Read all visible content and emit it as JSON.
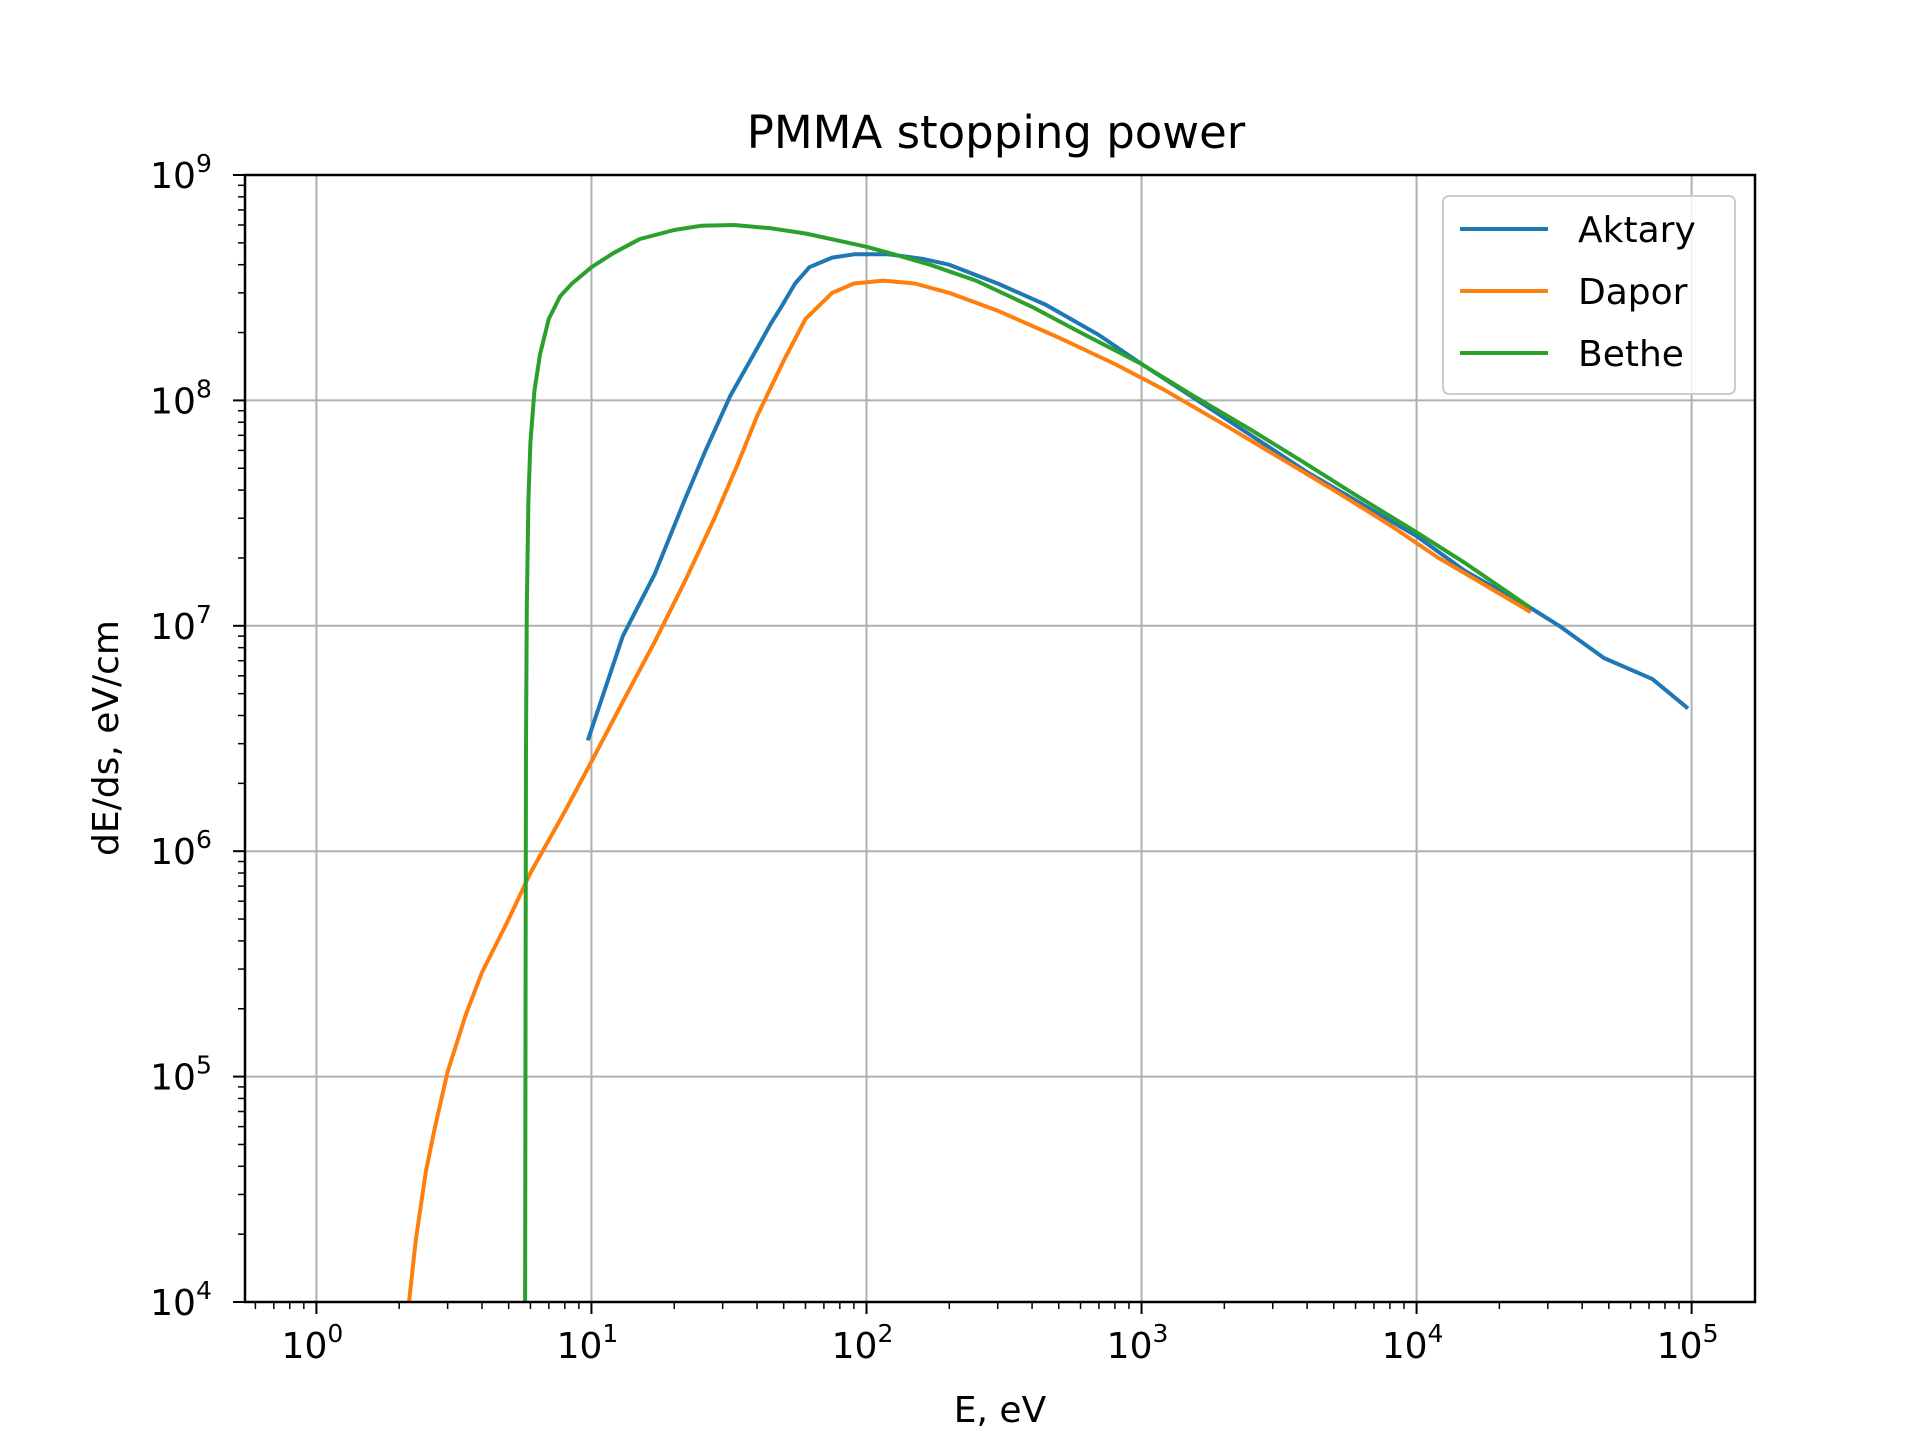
{
  "chart_data": {
    "type": "line",
    "title": "PMMA stopping power",
    "xlabel": "E, eV",
    "ylabel": "dE/ds, eV/cm",
    "xscale": "log",
    "yscale": "log",
    "xlim": [
      0.55,
      170000
    ],
    "ylim": [
      10000,
      1000000000
    ],
    "grid": true,
    "legend_position": "top-right",
    "x_ticks": [
      {
        "base": "10",
        "exp": "0",
        "value": 1
      },
      {
        "base": "10",
        "exp": "1",
        "value": 10
      },
      {
        "base": "10",
        "exp": "2",
        "value": 100
      },
      {
        "base": "10",
        "exp": "3",
        "value": 1000
      },
      {
        "base": "10",
        "exp": "4",
        "value": 10000
      },
      {
        "base": "10",
        "exp": "5",
        "value": 100000
      }
    ],
    "y_ticks": [
      {
        "base": "10",
        "exp": "4",
        "value": 10000
      },
      {
        "base": "10",
        "exp": "5",
        "value": 100000
      },
      {
        "base": "10",
        "exp": "6",
        "value": 1000000
      },
      {
        "base": "10",
        "exp": "7",
        "value": 10000000
      },
      {
        "base": "10",
        "exp": "8",
        "value": 100000000
      },
      {
        "base": "10",
        "exp": "9",
        "value": 1000000000
      }
    ],
    "series": [
      {
        "name": "Aktary",
        "color": "#1f77b4",
        "x": [
          9.7,
          13,
          17,
          22,
          26,
          32,
          40,
          45,
          49,
          55,
          62,
          75,
          90,
          120,
          160,
          200,
          300,
          450,
          700,
          1000,
          1600,
          2500,
          4000,
          6000,
          10000,
          15000,
          26000,
          33000,
          48000,
          72000,
          97000
        ],
        "y": [
          3100000.0,
          9000000.0,
          17000000.0,
          37000000.0,
          60000000.0,
          105000000.0,
          170000000.0,
          220000000.0,
          260000000.0,
          330000000.0,
          390000000.0,
          430000000.0,
          445000000.0,
          445000000.0,
          425000000.0,
          400000000.0,
          330000000.0,
          265000000.0,
          195000000.0,
          145000000.0,
          100000000.0,
          70000000.0,
          48000000.0,
          36000000.0,
          25000000.0,
          17500000.0,
          12000000.0,
          10000000.0,
          7200000.0,
          5800000.0,
          4300000.0
        ]
      },
      {
        "name": "Dapor",
        "color": "#ff7f0e",
        "x": [
          2.17,
          2.3,
          2.5,
          2.7,
          3.0,
          3.5,
          4.0,
          5.0,
          6.0,
          8.0,
          10,
          13,
          17,
          22,
          28,
          34,
          40,
          50,
          60,
          75,
          90,
          115,
          150,
          200,
          300,
          500,
          800,
          1200,
          2000,
          3000,
          5000,
          8000,
          12000,
          18000,
          26000
        ],
        "y": [
          10000.0,
          19000.0,
          38000.0,
          60000.0,
          105000.0,
          190000.0,
          290000.0,
          500000.0,
          800000.0,
          1500000.0,
          2500000.0,
          4600000.0,
          8500000.0,
          16000000.0,
          30000000.0,
          52000000.0,
          85000000.0,
          150000000.0,
          230000000.0,
          300000000.0,
          330000000.0,
          340000000.0,
          330000000.0,
          300000000.0,
          250000000.0,
          190000000.0,
          145000000.0,
          112000000.0,
          78000000.0,
          58000000.0,
          40000000.0,
          28000000.0,
          20000000.0,
          15000000.0,
          11500000.0
        ]
      },
      {
        "name": "Bethe",
        "color": "#2ca02c",
        "x": [
          5.74,
          5.76,
          5.78,
          5.82,
          5.9,
          6.0,
          6.2,
          6.5,
          7.0,
          7.7,
          8.5,
          10,
          12,
          15,
          20,
          25,
          33,
          45,
          60,
          80,
          100,
          130,
          170,
          250,
          400,
          600,
          1000,
          1500,
          2500,
          4000,
          6000,
          10000,
          15000,
          26000
        ],
        "y": [
          10000.0,
          300000.0,
          3000000.0,
          12000000.0,
          36000000.0,
          65000000.0,
          110000000.0,
          160000000.0,
          230000000.0,
          290000000.0,
          330000000.0,
          390000000.0,
          450000000.0,
          520000000.0,
          570000000.0,
          595000000.0,
          600000000.0,
          580000000.0,
          550000000.0,
          510000000.0,
          480000000.0,
          440000000.0,
          400000000.0,
          340000000.0,
          260000000.0,
          200000000.0,
          145000000.0,
          107000000.0,
          74000000.0,
          52000000.0,
          38000000.0,
          26000000.0,
          19000000.0,
          12000000.0
        ]
      }
    ]
  }
}
